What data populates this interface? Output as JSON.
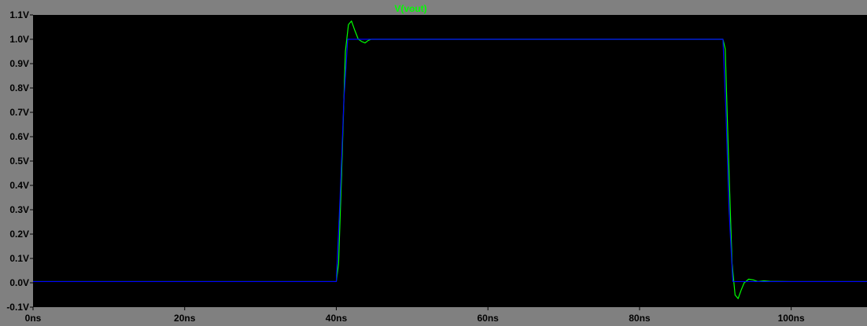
{
  "colors": {
    "background": "#808080",
    "plot_background": "#000000",
    "axis_text": "#000000",
    "series_vout": "#00ff00",
    "series_input": "#0000ff"
  },
  "chart_data": {
    "type": "line",
    "title": "V(vout)",
    "xlabel": "",
    "ylabel": "",
    "xlim": [
      0,
      110
    ],
    "ylim": [
      -0.1,
      1.1
    ],
    "x_unit": "ns",
    "y_unit": "V",
    "x_ticks": [
      "0ns",
      "20ns",
      "40ns",
      "60ns",
      "80ns",
      "100ns"
    ],
    "x_tick_values": [
      0,
      20,
      40,
      60,
      80,
      100
    ],
    "y_ticks": [
      "1.1V",
      "1.0V",
      "0.9V",
      "0.8V",
      "0.7V",
      "0.6V",
      "0.5V",
      "0.4V",
      "0.3V",
      "0.2V",
      "0.1V",
      "0.0V",
      "-0.1V"
    ],
    "y_tick_values": [
      1.1,
      1.0,
      0.9,
      0.8,
      0.7,
      0.6,
      0.5,
      0.4,
      0.3,
      0.2,
      0.1,
      0.0,
      -0.1
    ],
    "grid": false,
    "legend": "top-center",
    "series": [
      {
        "name": "V(vout)",
        "color": "#00ff00",
        "x": [
          0,
          40,
          40.3,
          40.7,
          41.2,
          41.6,
          42.0,
          42.4,
          42.9,
          43.4,
          43.8,
          44.2,
          44.6,
          91.0,
          91.3,
          91.7,
          92.2,
          92.6,
          93.0,
          93.4,
          93.8,
          94.4,
          95.0,
          95.6,
          96.4,
          97.2,
          100,
          110
        ],
        "y": [
          0.005,
          0.005,
          0.08,
          0.45,
          0.95,
          1.06,
          1.075,
          1.04,
          1.0,
          0.99,
          0.985,
          0.995,
          1.0,
          1.0,
          0.96,
          0.55,
          0.08,
          -0.05,
          -0.065,
          -0.03,
          0.0,
          0.015,
          0.012,
          0.005,
          0.008,
          0.006,
          0.005,
          0.005
        ]
      },
      {
        "x": [
          0,
          40,
          40.5,
          41.0,
          41.5,
          91.0,
          91.4,
          91.8,
          92.3,
          110
        ],
        "y": [
          0.005,
          0.005,
          0.35,
          0.75,
          1.0,
          1.0,
          0.7,
          0.3,
          0.005,
          0.005
        ]
      }
    ]
  }
}
